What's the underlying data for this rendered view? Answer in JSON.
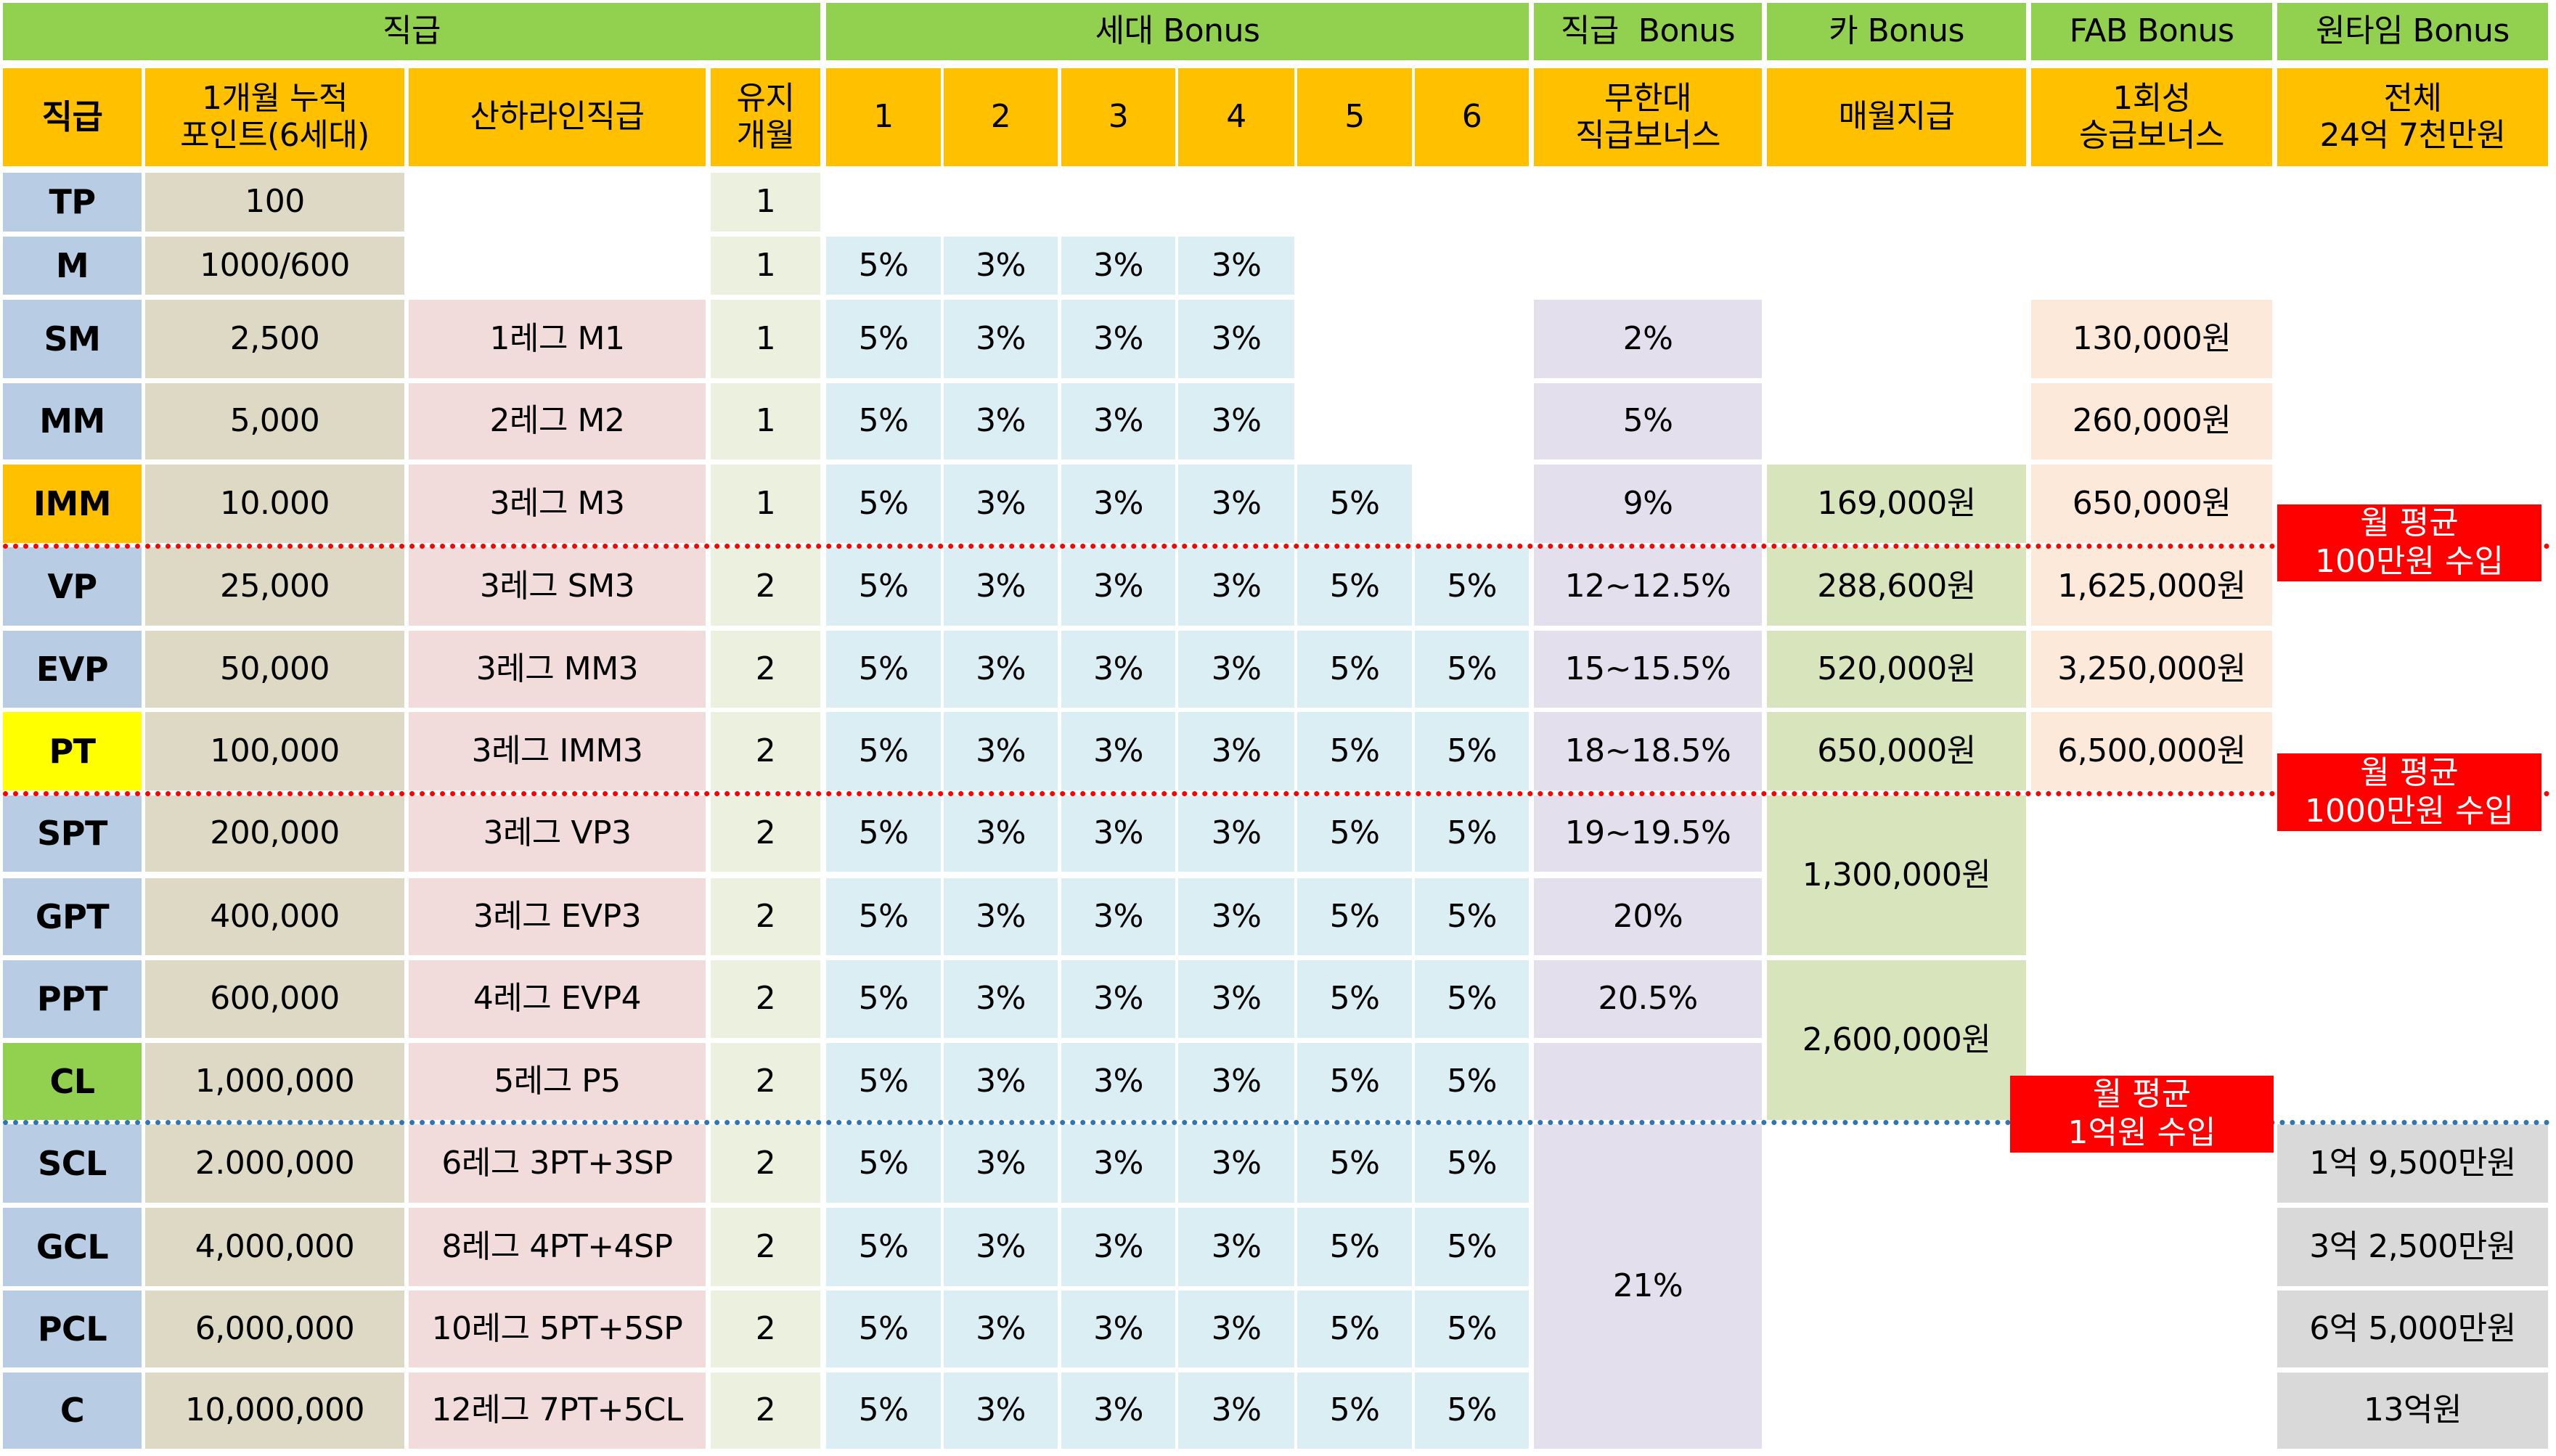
{
  "group_headers": {
    "rank": "직급",
    "gen_bonus": "세대 Bonus",
    "rank_bonus": "직급  Bonus",
    "car_bonus": "카 Bonus",
    "fab_bonus": "FAB Bonus",
    "onetime_bonus": "원타임 Bonus"
  },
  "column_headers": {
    "rank": "직급",
    "points": "1개월 누적\n포인트(6세대)",
    "downline": "산하라인직급",
    "keep_months": "유지\n개월",
    "gen": [
      "1",
      "2",
      "3",
      "4",
      "5",
      "6"
    ],
    "rank_bonus": "무한대\n직급보너스",
    "car_bonus": "매월지급",
    "fab_bonus": "1회성\n승급보너스",
    "onetime_bonus": "전체\n24억 7천만원"
  },
  "colors": {
    "header_green": "#92D050",
    "header_orange": "#FFC000",
    "rank_blue": "#B8CCE4",
    "rank_imm": "#FFC000",
    "rank_pt": "#FFFF00",
    "rank_cl": "#92D050",
    "callout_red": "#FF0000",
    "divider_red": "#FF0000",
    "divider_blue": "#2E75B6"
  },
  "rows": [
    {
      "rank": "TP",
      "points": "100",
      "downline": "",
      "keep": "1",
      "gen": [
        "",
        "",
        "",
        "",
        "",
        ""
      ]
    },
    {
      "rank": "M",
      "points": "1000/600",
      "downline": "",
      "keep": "1",
      "gen": [
        "5%",
        "3%",
        "3%",
        "3%",
        "",
        ""
      ]
    },
    {
      "rank": "SM",
      "points": "2,500",
      "downline": "1레그 M1",
      "keep": "1",
      "gen": [
        "5%",
        "3%",
        "3%",
        "3%",
        "",
        ""
      ],
      "rank_bonus": "2%",
      "fab_bonus": "130,000원"
    },
    {
      "rank": "MM",
      "points": "5,000",
      "downline": "2레그 M2",
      "keep": "1",
      "gen": [
        "5%",
        "3%",
        "3%",
        "3%",
        "",
        ""
      ],
      "rank_bonus": "5%",
      "fab_bonus": "260,000원"
    },
    {
      "rank": "IMM",
      "points": "10.000",
      "downline": "3레그 M3",
      "keep": "1",
      "gen": [
        "5%",
        "3%",
        "3%",
        "3%",
        "5%",
        ""
      ],
      "rank_bonus": "9%",
      "car_bonus": "169,000원",
      "fab_bonus": "650,000원"
    },
    {
      "rank": "VP",
      "points": "25,000",
      "downline": "3레그 SM3",
      "keep": "2",
      "gen": [
        "5%",
        "3%",
        "3%",
        "3%",
        "5%",
        "5%"
      ],
      "rank_bonus": "12~12.5%",
      "car_bonus": "288,600원",
      "fab_bonus": "1,625,000원"
    },
    {
      "rank": "EVP",
      "points": "50,000",
      "downline": "3레그 MM3",
      "keep": "2",
      "gen": [
        "5%",
        "3%",
        "3%",
        "3%",
        "5%",
        "5%"
      ],
      "rank_bonus": "15~15.5%",
      "car_bonus": "520,000원",
      "fab_bonus": "3,250,000원"
    },
    {
      "rank": "PT",
      "points": "100,000",
      "downline": "3레그 IMM3",
      "keep": "2",
      "gen": [
        "5%",
        "3%",
        "3%",
        "3%",
        "5%",
        "5%"
      ],
      "rank_bonus": "18~18.5%",
      "car_bonus": "650,000원",
      "fab_bonus": "6,500,000원"
    },
    {
      "rank": "SPT",
      "points": "200,000",
      "downline": "3레그 VP3",
      "keep": "2",
      "gen": [
        "5%",
        "3%",
        "3%",
        "3%",
        "5%",
        "5%"
      ],
      "rank_bonus": "19~19.5%"
    },
    {
      "rank": "GPT",
      "points": "400,000",
      "downline": "3레그 EVP3",
      "keep": "2",
      "gen": [
        "5%",
        "3%",
        "3%",
        "3%",
        "5%",
        "5%"
      ],
      "rank_bonus": "20%"
    },
    {
      "rank": "PPT",
      "points": "600,000",
      "downline": "4레그 EVP4",
      "keep": "2",
      "gen": [
        "5%",
        "3%",
        "3%",
        "3%",
        "5%",
        "5%"
      ],
      "rank_bonus": "20.5%"
    },
    {
      "rank": "CL",
      "points": "1,000,000",
      "downline": "5레그 P5",
      "keep": "2",
      "gen": [
        "5%",
        "3%",
        "3%",
        "3%",
        "5%",
        "5%"
      ],
      "rank_bonus": ""
    },
    {
      "rank": "SCL",
      "points": "2.000,000",
      "downline": "6레그 3PT+3SP",
      "keep": "2",
      "gen": [
        "5%",
        "3%",
        "3%",
        "3%",
        "5%",
        "5%"
      ],
      "onetime_bonus": "1억 9,500만원"
    },
    {
      "rank": "GCL",
      "points": "4,000,000",
      "downline": "8레그 4PT+4SP",
      "keep": "2",
      "gen": [
        "5%",
        "3%",
        "3%",
        "3%",
        "5%",
        "5%"
      ],
      "onetime_bonus": "3억 2,500만원"
    },
    {
      "rank": "PCL",
      "points": "6,000,000",
      "downline": "10레그 5PT+5SP",
      "keep": "2",
      "gen": [
        "5%",
        "3%",
        "3%",
        "3%",
        "5%",
        "5%"
      ],
      "onetime_bonus": "6억 5,000만원"
    },
    {
      "rank": "C",
      "points": "10,000,000",
      "downline": "12레그 7PT+5CL",
      "keep": "2",
      "gen": [
        "5%",
        "3%",
        "3%",
        "3%",
        "5%",
        "5%"
      ],
      "onetime_bonus": "13억원"
    }
  ],
  "merged": {
    "car_spt_gpt": "1,300,000원",
    "car_ppt_cl": "2,600,000원",
    "rank_bonus_scl_c": "21%"
  },
  "callouts": [
    {
      "text": "월 평균\n100만원 수입"
    },
    {
      "text": "월 평균\n1000만원 수입"
    },
    {
      "text": "월 평균\n1억원 수입"
    }
  ]
}
